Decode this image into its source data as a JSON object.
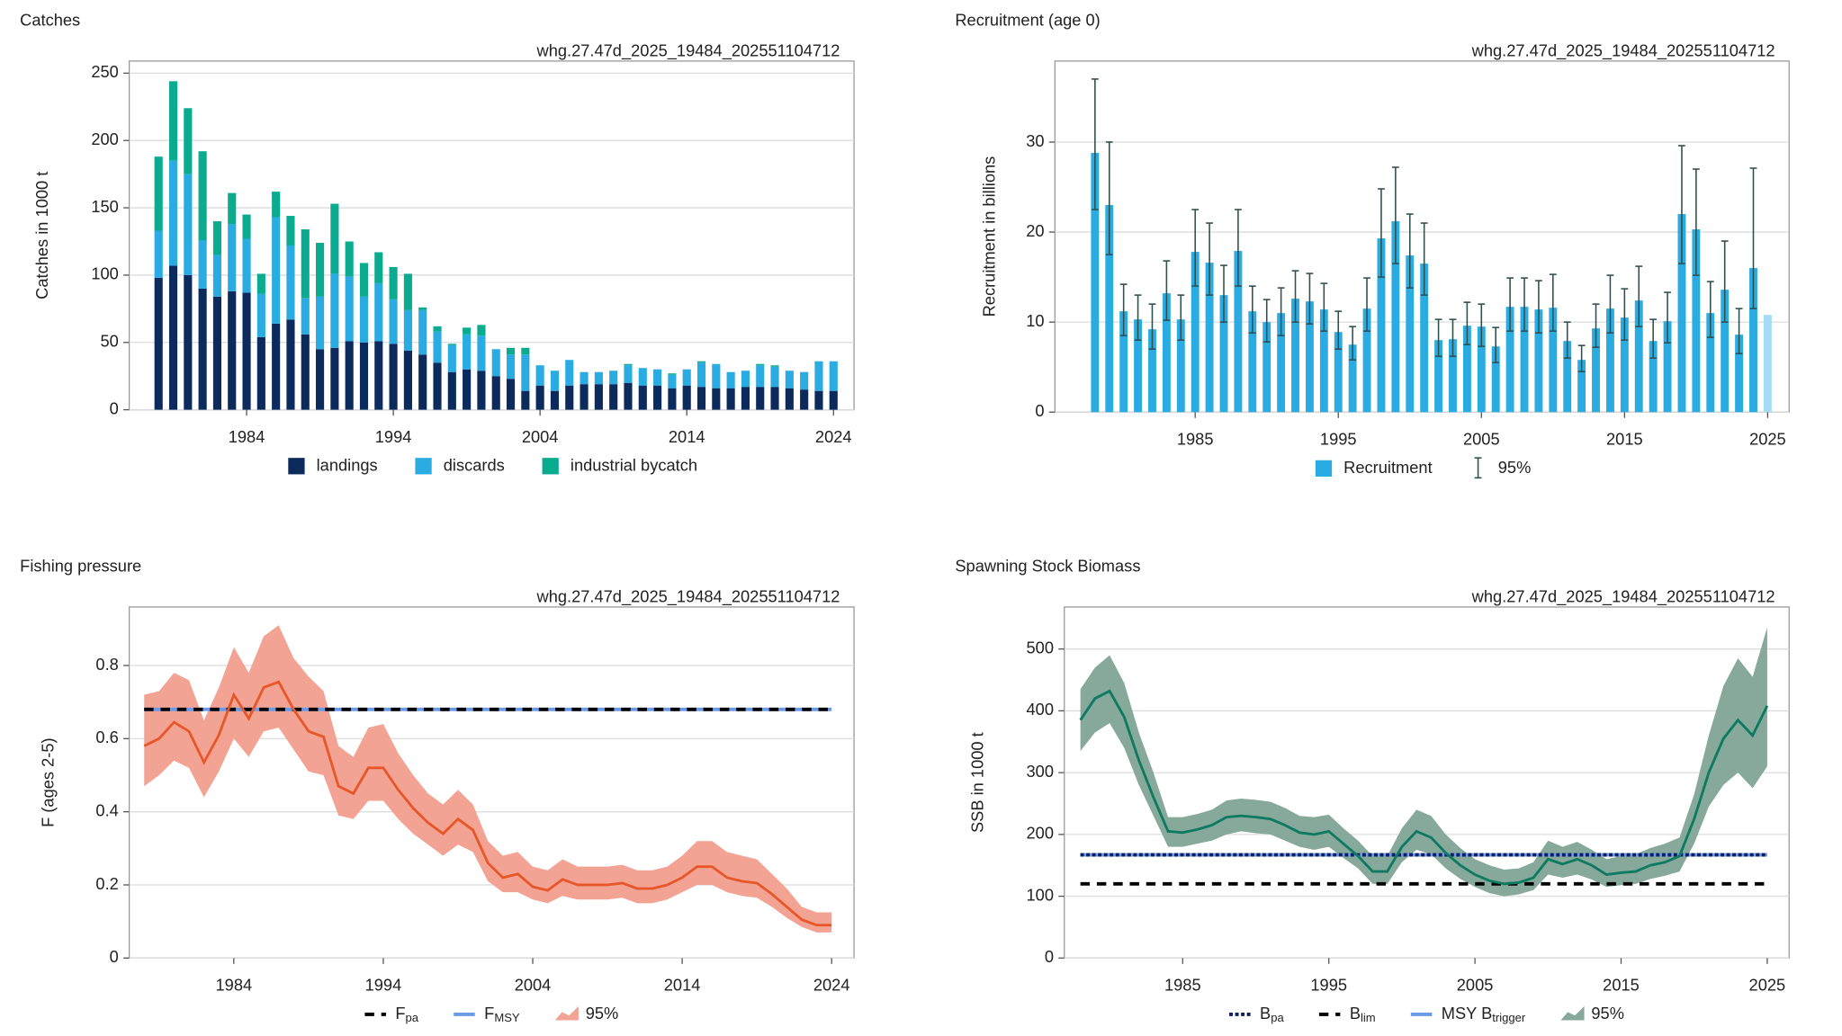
{
  "chart_data": [
    {
      "type": "bar",
      "stacked": true,
      "title": "Catches",
      "title_color": "#0d2a5c",
      "source": "whg.27.47d_2025_19484_202551104712",
      "y_label": "Catches in 1000 t",
      "grid": true,
      "x": [
        1978,
        1979,
        1980,
        1981,
        1982,
        1983,
        1984,
        1985,
        1986,
        1987,
        1988,
        1989,
        1990,
        1991,
        1992,
        1993,
        1994,
        1995,
        1996,
        1997,
        1998,
        1999,
        2000,
        2001,
        2002,
        2003,
        2004,
        2005,
        2006,
        2007,
        2008,
        2009,
        2010,
        2011,
        2012,
        2013,
        2014,
        2015,
        2016,
        2017,
        2018,
        2019,
        2020,
        2021,
        2022,
        2023,
        2024
      ],
      "series": [
        {
          "name": "landings",
          "color": "#0d2a5c",
          "values": [
            98,
            107,
            100,
            90,
            84,
            88,
            87,
            54,
            64,
            67,
            56,
            45,
            46,
            51,
            50,
            51,
            49,
            44,
            41,
            35,
            28,
            30,
            29,
            25,
            23,
            14,
            18,
            14,
            18,
            19,
            19,
            19,
            20,
            18,
            18,
            16,
            18,
            17,
            16,
            16,
            17,
            17,
            17,
            16,
            15,
            14,
            14
          ]
        },
        {
          "name": "discards",
          "color": "#2aace2",
          "values": [
            35,
            78,
            75,
            36,
            31,
            50,
            40,
            32,
            79,
            55,
            27,
            39,
            55,
            48,
            34,
            43,
            33,
            30,
            33,
            23,
            20,
            26,
            26,
            20,
            18,
            27,
            15,
            15,
            19,
            9,
            9,
            10,
            13,
            13,
            12,
            10,
            12,
            18,
            18,
            12,
            12,
            16,
            15,
            13,
            13,
            22,
            22
          ]
        },
        {
          "name": "industrial bycatch",
          "color": "#0bab8f",
          "values": [
            55,
            59,
            49,
            66,
            25,
            23,
            18,
            15,
            19,
            22,
            51,
            40,
            52,
            26,
            25,
            23,
            24,
            27,
            2,
            4,
            1,
            5,
            8,
            0,
            5,
            5,
            0,
            0,
            0,
            0,
            0,
            0,
            1,
            0,
            0,
            1,
            0,
            1,
            0,
            0,
            0,
            1,
            1,
            0,
            0,
            0,
            0
          ]
        }
      ],
      "xlim": [
        1976,
        2025.4
      ],
      "xticks": [
        1984,
        1994,
        2004,
        2014,
        2024
      ],
      "ylim": [
        0,
        259
      ],
      "yticks": [
        0,
        50,
        100,
        150,
        200,
        250
      ]
    },
    {
      "type": "bar",
      "title": "Recruitment (age 0)",
      "title_color": "#2aace2",
      "source": "whg.27.47d_2025_19484_202551104712",
      "y_label": "Recruitment in billions",
      "grid": true,
      "x": [
        1978,
        1979,
        1980,
        1981,
        1982,
        1983,
        1984,
        1985,
        1986,
        1987,
        1988,
        1989,
        1990,
        1991,
        1992,
        1993,
        1994,
        1995,
        1996,
        1997,
        1998,
        1999,
        2000,
        2001,
        2002,
        2003,
        2004,
        2005,
        2006,
        2007,
        2008,
        2009,
        2010,
        2011,
        2012,
        2013,
        2014,
        2015,
        2016,
        2017,
        2018,
        2019,
        2020,
        2021,
        2022,
        2023,
        2024,
        2025
      ],
      "series": [
        {
          "name": "Recruitment",
          "color": "#2aace2",
          "values": [
            28.8,
            23,
            11.2,
            10.3,
            9.2,
            13.2,
            10.3,
            17.8,
            16.6,
            13,
            17.9,
            11.2,
            10,
            11,
            12.6,
            12.3,
            11.4,
            8.9,
            7.5,
            11.5,
            19.3,
            21.2,
            17.4,
            16.5,
            8,
            8.1,
            9.6,
            9.5,
            7.3,
            11.7,
            11.7,
            11.4,
            11.6,
            7.9,
            5.8,
            9.3,
            11.5,
            10.5,
            12.4,
            7.9,
            10.1,
            22,
            20.3,
            11,
            13.6,
            8.6,
            16,
            10.8
          ],
          "low": [
            22.5,
            17.5,
            8.5,
            8,
            7,
            10.2,
            8,
            14,
            13,
            10,
            14,
            8.8,
            7.8,
            8.5,
            10,
            9.8,
            9,
            7,
            5.8,
            9,
            15,
            16.5,
            13.8,
            13,
            6.2,
            6.2,
            7.5,
            7.3,
            5.5,
            9,
            9,
            8.8,
            9,
            6,
            4.5,
            7.2,
            8.8,
            8,
            9.5,
            6,
            7.7,
            16.5,
            15.2,
            8.3,
            10,
            6.5,
            11.5,
            null
          ],
          "high": [
            37,
            30,
            14.2,
            13,
            12,
            16.8,
            13,
            22.5,
            21,
            16.3,
            22.5,
            14,
            12.5,
            13.8,
            15.7,
            15.4,
            14.3,
            11.2,
            9.5,
            14.9,
            24.8,
            27.2,
            22,
            21,
            10.3,
            10.3,
            12.2,
            12,
            9.4,
            14.9,
            14.9,
            14.6,
            15.3,
            10,
            7.4,
            12,
            15.2,
            13.7,
            16.2,
            10.3,
            13.3,
            29.6,
            27,
            14.5,
            19,
            11.5,
            27.1,
            null
          ]
        }
      ],
      "error_name": "95%",
      "error_color": "#2f4f4f",
      "projected_years": [
        2025
      ],
      "projected_color": "#a6ddf5",
      "xlim": [
        1975.2,
        2026.5
      ],
      "xticks": [
        1985,
        1995,
        2005,
        2015,
        2025
      ],
      "ylim": [
        0,
        39
      ],
      "yticks": [
        0,
        10,
        20,
        30
      ]
    },
    {
      "type": "line",
      "title": "Fishing pressure",
      "title_color": "#e8572a",
      "source": "whg.27.47d_2025_19484_202551104712",
      "y_label": "F (ages 2-5)",
      "grid": true,
      "x": [
        1978,
        1979,
        1980,
        1981,
        1982,
        1983,
        1984,
        1985,
        1986,
        1987,
        1988,
        1989,
        1990,
        1991,
        1992,
        1993,
        1994,
        1995,
        1996,
        1997,
        1998,
        1999,
        2000,
        2001,
        2002,
        2003,
        2004,
        2005,
        2006,
        2007,
        2008,
        2009,
        2010,
        2011,
        2012,
        2013,
        2014,
        2015,
        2016,
        2017,
        2018,
        2019,
        2020,
        2021,
        2022,
        2023,
        2024
      ],
      "series": [
        {
          "color": "#e8572a",
          "band_color": "#f3a393",
          "band_name": "95%",
          "values": [
            0.58,
            0.6,
            0.645,
            0.62,
            0.535,
            0.61,
            0.72,
            0.655,
            0.74,
            0.755,
            0.68,
            0.62,
            0.605,
            0.47,
            0.45,
            0.52,
            0.52,
            0.46,
            0.41,
            0.37,
            0.34,
            0.38,
            0.35,
            0.26,
            0.22,
            0.23,
            0.195,
            0.185,
            0.215,
            0.2,
            0.2,
            0.2,
            0.205,
            0.19,
            0.19,
            0.2,
            0.22,
            0.25,
            0.25,
            0.22,
            0.21,
            0.205,
            0.175,
            0.14,
            0.105,
            0.09,
            0.09
          ],
          "low": [
            0.47,
            0.5,
            0.54,
            0.52,
            0.44,
            0.51,
            0.6,
            0.55,
            0.62,
            0.63,
            0.57,
            0.51,
            0.5,
            0.39,
            0.38,
            0.43,
            0.43,
            0.38,
            0.34,
            0.31,
            0.28,
            0.31,
            0.29,
            0.21,
            0.18,
            0.18,
            0.16,
            0.15,
            0.17,
            0.16,
            0.16,
            0.16,
            0.165,
            0.15,
            0.15,
            0.16,
            0.18,
            0.2,
            0.2,
            0.18,
            0.17,
            0.165,
            0.14,
            0.11,
            0.085,
            0.07,
            0.07
          ],
          "high": [
            0.72,
            0.73,
            0.78,
            0.76,
            0.65,
            0.74,
            0.85,
            0.78,
            0.88,
            0.91,
            0.82,
            0.77,
            0.73,
            0.58,
            0.55,
            0.63,
            0.64,
            0.56,
            0.5,
            0.45,
            0.42,
            0.46,
            0.42,
            0.32,
            0.28,
            0.29,
            0.25,
            0.24,
            0.27,
            0.25,
            0.25,
            0.25,
            0.255,
            0.24,
            0.24,
            0.25,
            0.28,
            0.32,
            0.32,
            0.29,
            0.28,
            0.27,
            0.23,
            0.19,
            0.14,
            0.125,
            0.125
          ]
        }
      ],
      "reference_lines": [
        {
          "name": "F",
          "subscript": "pa",
          "value": 0.68,
          "color": "#000000",
          "style": "dashed"
        },
        {
          "name": "F",
          "subscript": "MSY",
          "value": 0.68,
          "color": "#6a9ae8",
          "style": "solid"
        }
      ],
      "xlim": [
        1977,
        2025.5
      ],
      "xticks": [
        1984,
        1994,
        2004,
        2014,
        2024
      ],
      "ylim": [
        0,
        0.96
      ],
      "yticks": [
        0,
        0.2,
        0.4,
        0.6,
        0.8
      ]
    },
    {
      "type": "line",
      "title": "Spawning Stock Biomass",
      "title_color": "#0e7a60",
      "source": "whg.27.47d_2025_19484_202551104712",
      "y_label": "SSB in 1000 t",
      "grid": true,
      "x": [
        1978,
        1979,
        1980,
        1981,
        1982,
        1983,
        1984,
        1985,
        1986,
        1987,
        1988,
        1989,
        1990,
        1991,
        1992,
        1993,
        1994,
        1995,
        1996,
        1997,
        1998,
        1999,
        2000,
        2001,
        2002,
        2003,
        2004,
        2005,
        2006,
        2007,
        2008,
        2009,
        2010,
        2011,
        2012,
        2013,
        2014,
        2015,
        2016,
        2017,
        2018,
        2019,
        2020,
        2021,
        2022,
        2023,
        2024,
        2025
      ],
      "series": [
        {
          "color": "#0e7a60",
          "band_color": "#86a99b",
          "band_name": "95%",
          "values": [
            385,
            420,
            432,
            390,
            320,
            260,
            205,
            203,
            208,
            215,
            228,
            230,
            228,
            225,
            215,
            203,
            200,
            205,
            185,
            165,
            140,
            140,
            180,
            205,
            195,
            170,
            150,
            135,
            125,
            120,
            122,
            130,
            160,
            152,
            160,
            150,
            135,
            138,
            140,
            150,
            155,
            165,
            225,
            300,
            355,
            385,
            360,
            408
          ],
          "low": [
            335,
            365,
            380,
            340,
            280,
            230,
            180,
            180,
            185,
            190,
            200,
            205,
            202,
            200,
            190,
            180,
            175,
            180,
            162,
            145,
            120,
            120,
            155,
            175,
            168,
            145,
            128,
            115,
            105,
            100,
            103,
            110,
            135,
            130,
            135,
            127,
            115,
            118,
            120,
            128,
            133,
            140,
            185,
            245,
            280,
            300,
            275,
            310
          ],
          "high": [
            435,
            470,
            490,
            445,
            365,
            300,
            228,
            228,
            233,
            240,
            255,
            258,
            256,
            253,
            243,
            230,
            228,
            232,
            210,
            190,
            165,
            165,
            210,
            240,
            230,
            200,
            178,
            160,
            150,
            143,
            145,
            155,
            190,
            180,
            188,
            175,
            160,
            165,
            168,
            178,
            185,
            195,
            265,
            360,
            440,
            485,
            455,
            535
          ]
        }
      ],
      "reference_lines": [
        {
          "name": "B",
          "subscript": "pa",
          "value": 167,
          "color": "#0d1f5c",
          "style": "dotted"
        },
        {
          "name": "B",
          "subscript": "lim",
          "value": 120,
          "color": "#000000",
          "style": "dashed"
        },
        {
          "name": "MSY B",
          "subscript": "trigger",
          "value": 167,
          "color": "#6a9ae8",
          "style": "solid"
        }
      ],
      "xlim": [
        1976.9,
        2026.5
      ],
      "xticks": [
        1985,
        1995,
        2005,
        2015,
        2025
      ],
      "ylim": [
        0,
        568
      ],
      "yticks": [
        0,
        100,
        200,
        300,
        400,
        500
      ]
    }
  ]
}
